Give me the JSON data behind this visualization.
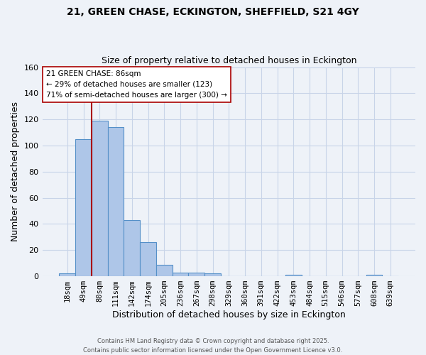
{
  "title1": "21, GREEN CHASE, ECKINGTON, SHEFFIELD, S21 4GY",
  "title2": "Size of property relative to detached houses in Eckington",
  "xlabel": "Distribution of detached houses by size in Eckington",
  "ylabel": "Number of detached properties",
  "bar_labels": [
    "18sqm",
    "49sqm",
    "80sqm",
    "111sqm",
    "142sqm",
    "174sqm",
    "205sqm",
    "236sqm",
    "267sqm",
    "298sqm",
    "329sqm",
    "360sqm",
    "391sqm",
    "422sqm",
    "453sqm",
    "484sqm",
    "515sqm",
    "546sqm",
    "577sqm",
    "608sqm",
    "639sqm"
  ],
  "bar_values": [
    2,
    105,
    119,
    114,
    43,
    26,
    9,
    3,
    3,
    2,
    0,
    0,
    0,
    0,
    1,
    0,
    0,
    0,
    0,
    1,
    0
  ],
  "bar_color": "#aec6e8",
  "bar_edge_color": "#5590c8",
  "grid_color": "#c8d4e8",
  "background_color": "#eef2f8",
  "vline_color": "#aa0000",
  "annotation_text": "21 GREEN CHASE: 86sqm\n← 29% of detached houses are smaller (123)\n71% of semi-detached houses are larger (300) →",
  "annotation_box_color": "#ffffff",
  "annotation_box_edge": "#aa0000",
  "ylim": [
    0,
    160
  ],
  "yticks": [
    0,
    20,
    40,
    60,
    80,
    100,
    120,
    140,
    160
  ],
  "footer_text": "Contains HM Land Registry data © Crown copyright and database right 2025.\nContains public sector information licensed under the Open Government Licence v3.0."
}
